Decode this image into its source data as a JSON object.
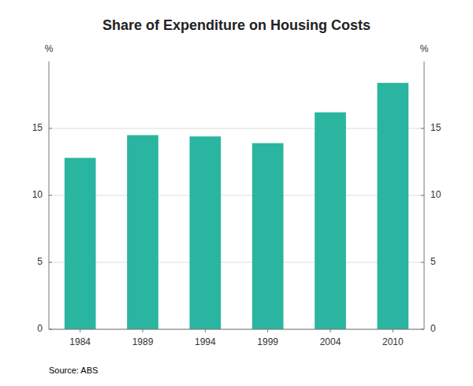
{
  "chart_data": {
    "type": "bar",
    "title": "Share of Expenditure on Housing Costs",
    "categories": [
      "1984",
      "1989",
      "1994",
      "1999",
      "2004",
      "2010"
    ],
    "values": [
      12.8,
      14.5,
      14.4,
      13.9,
      16.2,
      18.4
    ],
    "color": "#2ab5a0",
    "ylabel": "%",
    "y2label": "%",
    "ylim": [
      0,
      20
    ],
    "yticks": [
      0,
      5,
      10,
      15
    ],
    "y2lim": [
      0,
      20
    ],
    "y2ticks": [
      0,
      5,
      10,
      15
    ],
    "grid": true,
    "source": "Source: ABS"
  }
}
